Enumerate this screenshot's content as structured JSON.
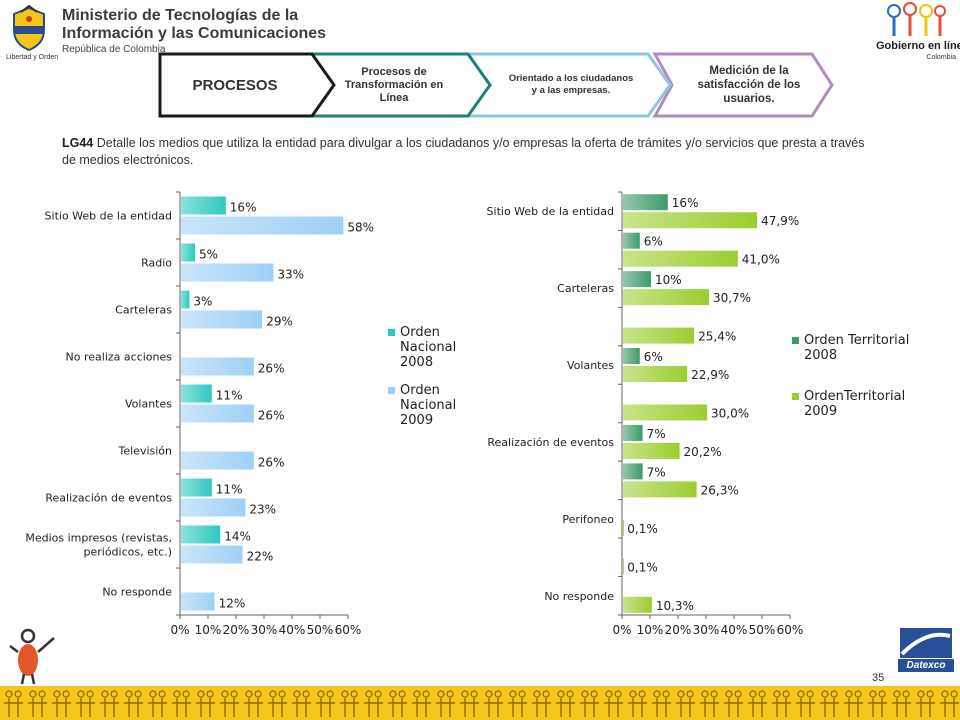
{
  "header": {
    "ministry_line1": "Ministerio de Tecnologías de la",
    "ministry_line2": "Información y las Comunicaciones",
    "ministry_line3": "República de Colombia",
    "seal_caption": "Libertad y Orden",
    "gov_logo_line1": "Gobierno en línea",
    "gov_logo_line2": "Colombia"
  },
  "process_steps": [
    {
      "label": "PROCESOS"
    },
    {
      "label": "Procesos de Transformación en Línea"
    },
    {
      "label": "Orientado a los ciudadanos y a las empresas."
    },
    {
      "label": "Medición de la satisfacción de los usuarios."
    }
  ],
  "description": {
    "code": "LG44",
    "text": " Detalle los medios que utiliza la entidad para divulgar a los ciudadanos y/o empresas la oferta de trámites y/o  servicios que presta a través de medios electrónicos."
  },
  "page_number": "35",
  "brand": "Datexco",
  "colors": {
    "nacional_2008": "#2ec9c0",
    "nacional_2009": "#9fd0f5",
    "territorial_2008": "#3d9a6a",
    "territorial_2009": "#9ccd2e",
    "process_1_border": "#1a1a1a",
    "process_2_border": "#1b7f7a",
    "process_3_border": "#8fc8de",
    "process_4_border": "#b48ac6",
    "footer_band": "#f6c61c"
  },
  "chart_data": [
    {
      "type": "bar",
      "orientation": "horizontal",
      "categories": [
        "Sitio Web de la entidad",
        "Radio",
        "Carteleras",
        "No realiza acciones",
        "Volantes",
        "Televisión",
        "Realización de eventos",
        "Medios impresos (revistas, periódicos, etc.)",
        "No responde"
      ],
      "series": [
        {
          "name": "Orden Nacional 2008",
          "values": [
            16,
            5,
            3,
            null,
            11,
            null,
            11,
            14,
            null
          ],
          "labels": [
            "16%",
            "5%",
            "3%",
            "",
            "11%",
            "",
            "11%",
            "14%",
            ""
          ]
        },
        {
          "name": "Orden Nacional 2009",
          "values": [
            58,
            33,
            29,
            26,
            26,
            26,
            23,
            22,
            12
          ],
          "labels": [
            "58%",
            "33%",
            "29%",
            "26%",
            "26%",
            "26%",
            "23%",
            "22%",
            "12%"
          ]
        }
      ],
      "xlim": [
        0,
        60
      ],
      "xticks": [
        "0%",
        "10%",
        "20%",
        "30%",
        "40%",
        "50%",
        "60%"
      ],
      "legend_position": "right"
    },
    {
      "type": "bar",
      "orientation": "horizontal",
      "categories": [
        "Sitio Web de la entidad",
        "",
        "Carteleras",
        "",
        "Volantes",
        "",
        "Realización de eventos",
        "",
        "Perifoneo",
        "",
        "No responde"
      ],
      "series": [
        {
          "name": "Orden Territorial 2008",
          "values": [
            16,
            6,
            10,
            null,
            6,
            null,
            7,
            7,
            null,
            null,
            null
          ],
          "labels": [
            "16%",
            "6%",
            "10%",
            "",
            "6%",
            "",
            "7%",
            "7%",
            "",
            "",
            ""
          ]
        },
        {
          "name": "OrdenTerritorial 2009",
          "values": [
            47.9,
            41.0,
            30.7,
            25.4,
            22.9,
            30.0,
            20.2,
            26.3,
            0.1,
            0.1,
            10.3
          ],
          "labels": [
            "47,9%",
            "41,0%",
            "30,7%",
            "25,4%",
            "22,9%",
            "30,0%",
            "20,2%",
            "26,3%",
            "0,1%",
            "0,1%",
            "10,3%"
          ]
        }
      ],
      "xlim": [
        0,
        60
      ],
      "xticks": [
        "0%",
        "10%",
        "20%",
        "30%",
        "40%",
        "50%",
        "60%"
      ],
      "legend_position": "right"
    }
  ],
  "legends": {
    "left": [
      {
        "line1": "Orden",
        "line2": "Nacional",
        "line3": "2008"
      },
      {
        "line1": "Orden",
        "line2": "Nacional",
        "line3": "2009"
      }
    ],
    "right": [
      {
        "line1": "Orden Territorial",
        "line2": "2008"
      },
      {
        "line1": "OrdenTerritorial",
        "line2": "2009"
      }
    ]
  }
}
